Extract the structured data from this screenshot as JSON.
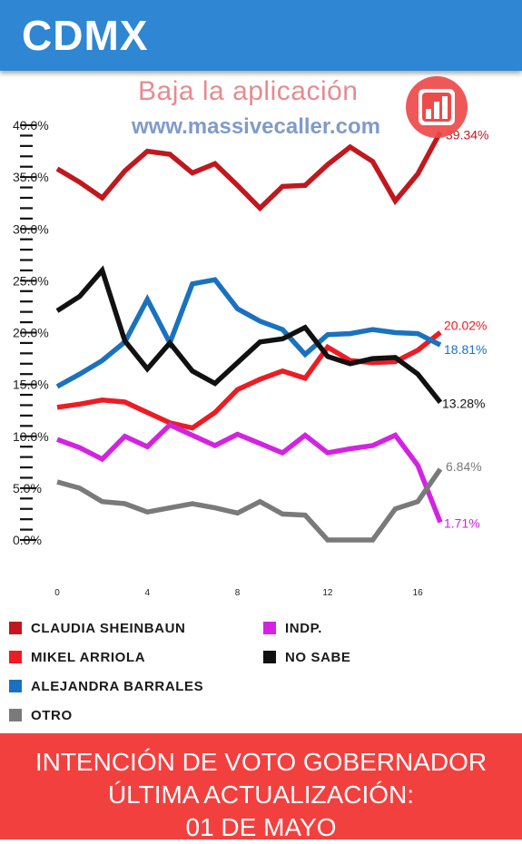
{
  "header": {
    "title": "CDMX"
  },
  "promo": {
    "line1": "Baja la aplicación",
    "line2": "www.massivecaller.com",
    "logo_icon": "bar-chart-icon"
  },
  "colors": {
    "header": "#2f86d2",
    "footer": "#f2403f"
  },
  "chart_data": {
    "type": "line",
    "title": "",
    "xlabel": "",
    "ylabel": "",
    "xlim": [
      0,
      18
    ],
    "ylim": [
      0,
      40
    ],
    "x_ticks": [
      "0",
      "4",
      "8",
      "12",
      "16"
    ],
    "y_ticks": [
      "40.0%",
      "35.0%",
      "30.0%",
      "25.0%",
      "20.0%",
      "15.0%",
      "10.0%",
      "5.0%",
      "0.0%"
    ],
    "grid": false,
    "x": [
      0,
      1,
      2,
      3,
      4,
      5,
      6,
      7,
      8,
      9,
      10,
      11,
      12,
      13,
      14,
      15,
      16,
      17
    ],
    "series": [
      {
        "name": "CLAUDIA SHEINBAUN",
        "color": "#c0181e",
        "end_label": "39.34%",
        "values": [
          35.8,
          34.5,
          33.0,
          35.6,
          37.5,
          37.2,
          35.4,
          36.3,
          34.2,
          32.0,
          34.1,
          34.2,
          36.2,
          37.9,
          36.5,
          32.7,
          35.3,
          39.34
        ]
      },
      {
        "name": "MIKEL ARRIOLA",
        "color": "#ec1c24",
        "end_label": "20.02%",
        "values": [
          12.8,
          13.1,
          13.5,
          13.3,
          12.3,
          11.3,
          10.8,
          12.3,
          14.5,
          15.5,
          16.3,
          15.6,
          18.6,
          17.3,
          17.1,
          17.2,
          18.3,
          20.02
        ]
      },
      {
        "name": "ALEJANDRA BARRALES",
        "color": "#1a72bf",
        "end_label": "18.81%",
        "values": [
          14.8,
          16.0,
          17.3,
          19.1,
          23.2,
          19.0,
          24.7,
          25.1,
          22.3,
          21.1,
          20.3,
          17.9,
          19.8,
          19.9,
          20.3,
          20.0,
          19.9,
          18.81
        ]
      },
      {
        "name": "NO SABE",
        "color": "#111111",
        "end_label": "13.28%",
        "values": [
          22.1,
          23.5,
          26.0,
          19.2,
          16.5,
          19.0,
          16.3,
          15.1,
          17.1,
          19.1,
          19.4,
          20.5,
          17.7,
          17.0,
          17.5,
          17.6,
          16.0,
          13.28
        ]
      },
      {
        "name": "INDP.",
        "color": "#d323e2",
        "end_label": "1.71%",
        "values": [
          9.7,
          8.9,
          7.8,
          10.0,
          9.0,
          11.1,
          10.1,
          9.1,
          10.2,
          9.3,
          8.4,
          10.1,
          8.4,
          8.8,
          9.1,
          10.1,
          7.2,
          1.71
        ]
      },
      {
        "name": "OTRO",
        "color": "#7a7a7a",
        "end_label": "6.84%",
        "values": [
          5.6,
          5.0,
          3.7,
          3.5,
          2.7,
          3.1,
          3.5,
          3.1,
          2.6,
          3.7,
          2.5,
          2.4,
          0.0,
          0.0,
          0.0,
          3.0,
          3.7,
          6.84
        ]
      }
    ]
  },
  "legend": [
    {
      "label": "CLAUDIA SHEINBAUN",
      "color": "#c0181e"
    },
    {
      "label": "INDP.",
      "color": "#d323e2"
    },
    {
      "label": "MIKEL ARRIOLA",
      "color": "#ec1c24"
    },
    {
      "label": "NO SABE",
      "color": "#111111"
    },
    {
      "label": "ALEJANDRA BARRALES",
      "color": "#1a72bf"
    },
    {
      "label": "OTRO",
      "color": "#7a7a7a"
    }
  ],
  "footer": {
    "line1": "INTENCIÓN DE VOTO GOBERNADOR",
    "line2": "ÚLTIMA ACTUALIZACIÓN:",
    "line3": "01 DE MAYO"
  }
}
